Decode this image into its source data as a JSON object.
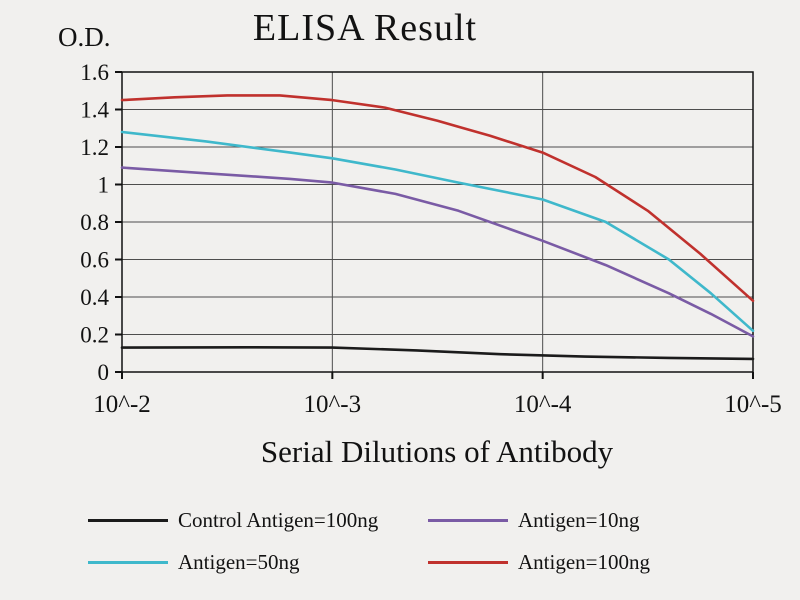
{
  "chart_data": {
    "type": "line",
    "title": "ELISA Result",
    "ylabel": "O.D.",
    "xlabel": "Serial Dilutions of Antibody",
    "x_tick_labels": [
      "10^-2",
      "10^-3",
      "10^-4",
      "10^-5"
    ],
    "y_ticks": [
      0,
      0.2,
      0.4,
      0.6,
      0.8,
      1,
      1.2,
      1.4,
      1.6
    ],
    "ylim": [
      0,
      1.6
    ],
    "grid": true,
    "legend_position": "bottom",
    "series": [
      {
        "name": "Control Antigen=100ng",
        "color": "#1b1b1b",
        "points": [
          [
            0,
            0.13
          ],
          [
            0.6,
            0.132
          ],
          [
            1,
            0.13
          ],
          [
            1.4,
            0.115
          ],
          [
            1.8,
            0.095
          ],
          [
            2.2,
            0.082
          ],
          [
            2.6,
            0.075
          ],
          [
            3,
            0.07
          ]
        ]
      },
      {
        "name": "Antigen=10ng",
        "color": "#7a5ba5",
        "points": [
          [
            0,
            1.09
          ],
          [
            0.4,
            1.06
          ],
          [
            0.8,
            1.03
          ],
          [
            1,
            1.01
          ],
          [
            1.3,
            0.95
          ],
          [
            1.6,
            0.86
          ],
          [
            2,
            0.7
          ],
          [
            2.3,
            0.57
          ],
          [
            2.6,
            0.42
          ],
          [
            2.8,
            0.31
          ],
          [
            3,
            0.19
          ]
        ]
      },
      {
        "name": "Antigen=50ng",
        "color": "#3fb8cb",
        "points": [
          [
            0,
            1.28
          ],
          [
            0.4,
            1.23
          ],
          [
            0.8,
            1.17
          ],
          [
            1,
            1.14
          ],
          [
            1.3,
            1.08
          ],
          [
            1.6,
            1.01
          ],
          [
            2,
            0.92
          ],
          [
            2.3,
            0.8
          ],
          [
            2.6,
            0.6
          ],
          [
            2.8,
            0.42
          ],
          [
            3,
            0.22
          ]
        ]
      },
      {
        "name": "Antigen=100ng",
        "color": "#c0312d",
        "points": [
          [
            0,
            1.45
          ],
          [
            0.25,
            1.465
          ],
          [
            0.5,
            1.475
          ],
          [
            0.75,
            1.475
          ],
          [
            1,
            1.45
          ],
          [
            1.25,
            1.41
          ],
          [
            1.5,
            1.34
          ],
          [
            1.75,
            1.26
          ],
          [
            2,
            1.17
          ],
          [
            2.25,
            1.04
          ],
          [
            2.5,
            0.86
          ],
          [
            2.75,
            0.63
          ],
          [
            3,
            0.38
          ]
        ]
      }
    ]
  },
  "colors": {
    "background": "#f1f0ee",
    "gridline": "#4d4d4d",
    "axis": "#111111"
  }
}
